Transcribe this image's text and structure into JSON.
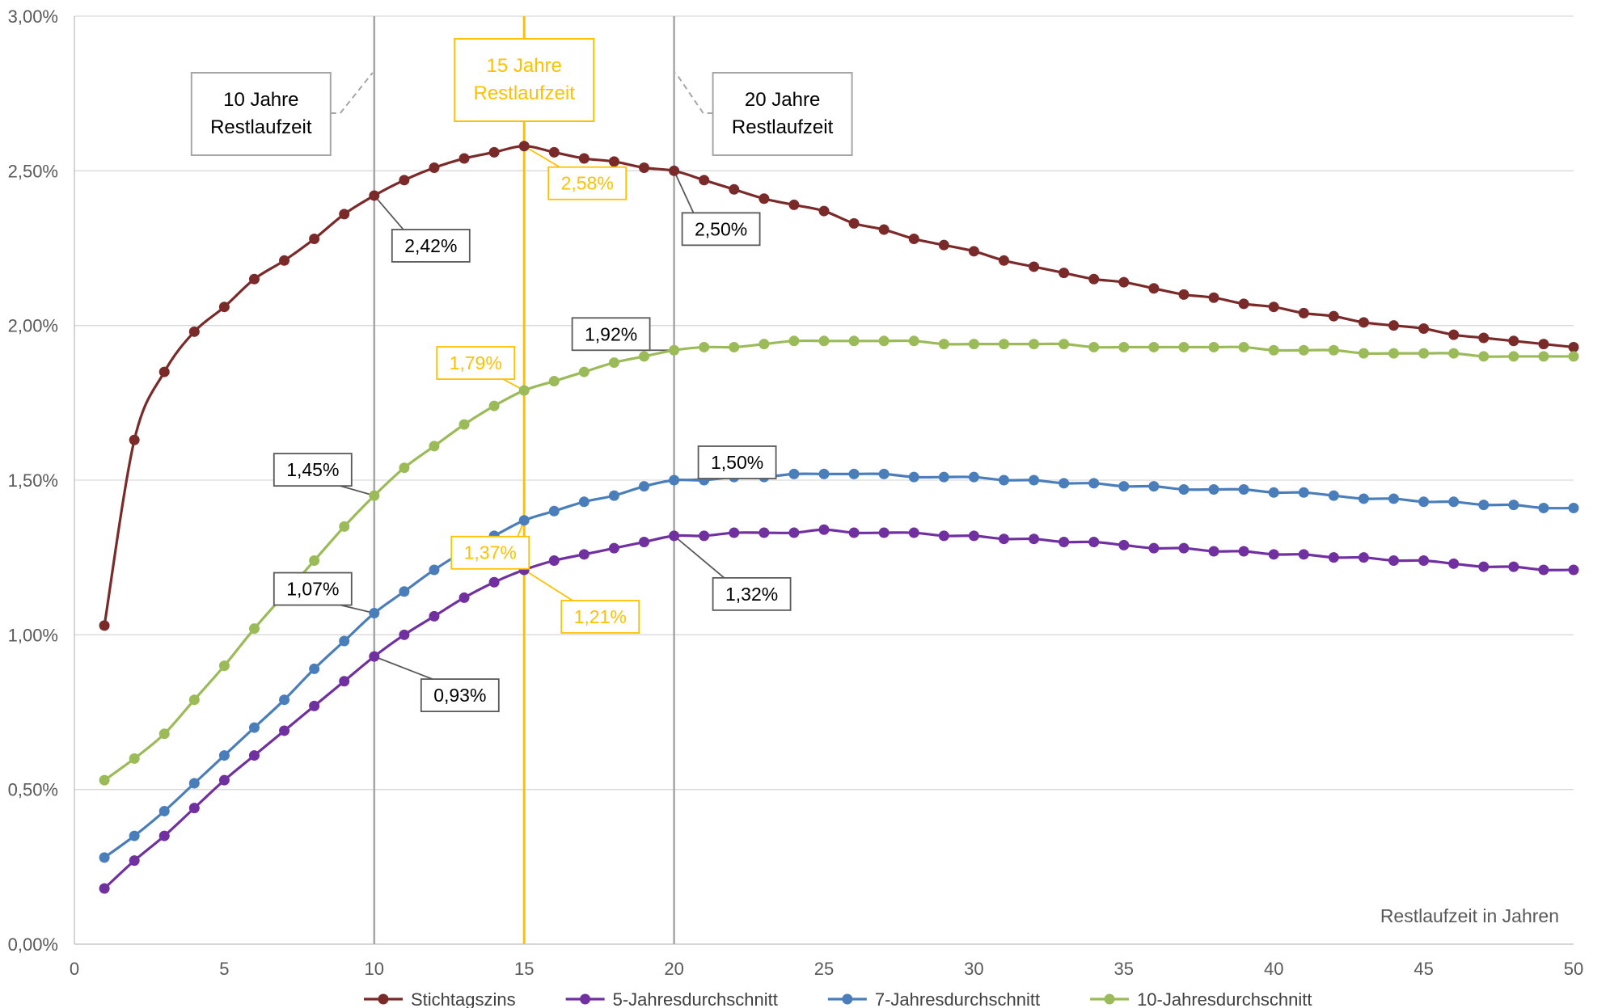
{
  "chart_data": {
    "type": "line",
    "title": "",
    "xlabel": "Restlaufzeit in Jahren",
    "ylabel": "",
    "xlim": [
      0,
      50
    ],
    "ylim": [
      0,
      3.0
    ],
    "x_ticks": [
      "0",
      "5",
      "10",
      "15",
      "20",
      "25",
      "30",
      "35",
      "40",
      "45",
      "50"
    ],
    "y_ticks": [
      "0,00%",
      "0,50%",
      "1,00%",
      "1,50%",
      "2,00%",
      "2,50%",
      "3,00%"
    ],
    "grid": "horizontal",
    "legend_position": "bottom",
    "x": [
      1,
      2,
      3,
      4,
      5,
      6,
      7,
      8,
      9,
      10,
      11,
      12,
      13,
      14,
      15,
      16,
      17,
      18,
      19,
      20,
      21,
      22,
      23,
      24,
      25,
      26,
      27,
      28,
      29,
      30,
      31,
      32,
      33,
      34,
      35,
      36,
      37,
      38,
      39,
      40,
      41,
      42,
      43,
      44,
      45,
      46,
      47,
      48,
      49,
      50
    ],
    "series": [
      {
        "name": "Stichtagszins",
        "color": "#7b2a2a",
        "values": [
          1.03,
          1.63,
          1.85,
          1.98,
          2.06,
          2.15,
          2.21,
          2.28,
          2.36,
          2.42,
          2.47,
          2.51,
          2.54,
          2.56,
          2.58,
          2.56,
          2.54,
          2.53,
          2.51,
          2.5,
          2.47,
          2.44,
          2.41,
          2.39,
          2.37,
          2.33,
          2.31,
          2.28,
          2.26,
          2.24,
          2.21,
          2.19,
          2.17,
          2.15,
          2.14,
          2.12,
          2.1,
          2.09,
          2.07,
          2.06,
          2.04,
          2.03,
          2.01,
          2.0,
          1.99,
          1.97,
          1.96,
          1.95,
          1.94,
          1.93
        ]
      },
      {
        "name": "5-Jahresdurchschnitt",
        "color": "#7030a0",
        "values": [
          0.18,
          0.27,
          0.35,
          0.44,
          0.53,
          0.61,
          0.69,
          0.77,
          0.85,
          0.93,
          1.0,
          1.06,
          1.12,
          1.17,
          1.21,
          1.24,
          1.26,
          1.28,
          1.3,
          1.32,
          1.32,
          1.33,
          1.33,
          1.33,
          1.34,
          1.33,
          1.33,
          1.33,
          1.32,
          1.32,
          1.31,
          1.31,
          1.3,
          1.3,
          1.29,
          1.28,
          1.28,
          1.27,
          1.27,
          1.26,
          1.26,
          1.25,
          1.25,
          1.24,
          1.24,
          1.23,
          1.22,
          1.22,
          1.21,
          1.21
        ]
      },
      {
        "name": "7-Jahresdurchschnitt",
        "color": "#4a7ebb",
        "values": [
          0.28,
          0.35,
          0.43,
          0.52,
          0.61,
          0.7,
          0.79,
          0.89,
          0.98,
          1.07,
          1.14,
          1.21,
          1.27,
          1.32,
          1.37,
          1.4,
          1.43,
          1.45,
          1.48,
          1.5,
          1.5,
          1.51,
          1.51,
          1.52,
          1.52,
          1.52,
          1.52,
          1.51,
          1.51,
          1.51,
          1.5,
          1.5,
          1.49,
          1.49,
          1.48,
          1.48,
          1.47,
          1.47,
          1.47,
          1.46,
          1.46,
          1.45,
          1.44,
          1.44,
          1.43,
          1.43,
          1.42,
          1.42,
          1.41,
          1.41
        ]
      },
      {
        "name": "10-Jahresdurchschnitt",
        "color": "#9bbb59",
        "values": [
          0.53,
          0.6,
          0.68,
          0.79,
          0.9,
          1.02,
          1.13,
          1.24,
          1.35,
          1.45,
          1.54,
          1.61,
          1.68,
          1.74,
          1.79,
          1.82,
          1.85,
          1.88,
          1.9,
          1.92,
          1.93,
          1.93,
          1.94,
          1.95,
          1.95,
          1.95,
          1.95,
          1.95,
          1.94,
          1.94,
          1.94,
          1.94,
          1.94,
          1.93,
          1.93,
          1.93,
          1.93,
          1.93,
          1.93,
          1.92,
          1.92,
          1.92,
          1.91,
          1.91,
          1.91,
          1.91,
          1.9,
          1.9,
          1.9,
          1.9
        ]
      }
    ],
    "vertical_lines": [
      {
        "x": 10,
        "color": "#a6a6a6",
        "label": [
          "10 Jahre",
          "Restlaufzeit"
        ],
        "label_color": "#000000"
      },
      {
        "x": 15,
        "color": "#ffc000",
        "label": [
          "15 Jahre",
          "Restlaufzeit"
        ],
        "label_color": "#ffc000"
      },
      {
        "x": 20,
        "color": "#a6a6a6",
        "label": [
          "20 Jahre",
          "Restlaufzeit"
        ],
        "label_color": "#000000"
      }
    ],
    "annotations": [
      {
        "x": 10,
        "y": 2.42,
        "text": "2,42%",
        "color": "#000000"
      },
      {
        "x": 15,
        "y": 2.58,
        "text": "2,58%",
        "color": "#ffc000"
      },
      {
        "x": 20,
        "y": 2.5,
        "text": "2,50%",
        "color": "#000000"
      },
      {
        "x": 15,
        "y": 1.79,
        "text": "1,79%",
        "color": "#ffc000"
      },
      {
        "x": 20,
        "y": 1.92,
        "text": "1,92%",
        "color": "#000000"
      },
      {
        "x": 10,
        "y": 1.45,
        "text": "1,45%",
        "color": "#000000"
      },
      {
        "x": 15,
        "y": 1.37,
        "text": "1,37%",
        "color": "#ffc000"
      },
      {
        "x": 20,
        "y": 1.5,
        "text": "1,50%",
        "color": "#000000"
      },
      {
        "x": 10,
        "y": 1.07,
        "text": "1,07%",
        "color": "#000000"
      },
      {
        "x": 20,
        "y": 1.32,
        "text": "1,32%",
        "color": "#000000"
      },
      {
        "x": 15,
        "y": 1.21,
        "text": "1,21%",
        "color": "#ffc000"
      },
      {
        "x": 10,
        "y": 0.93,
        "text": "0,93%",
        "color": "#000000"
      }
    ]
  }
}
